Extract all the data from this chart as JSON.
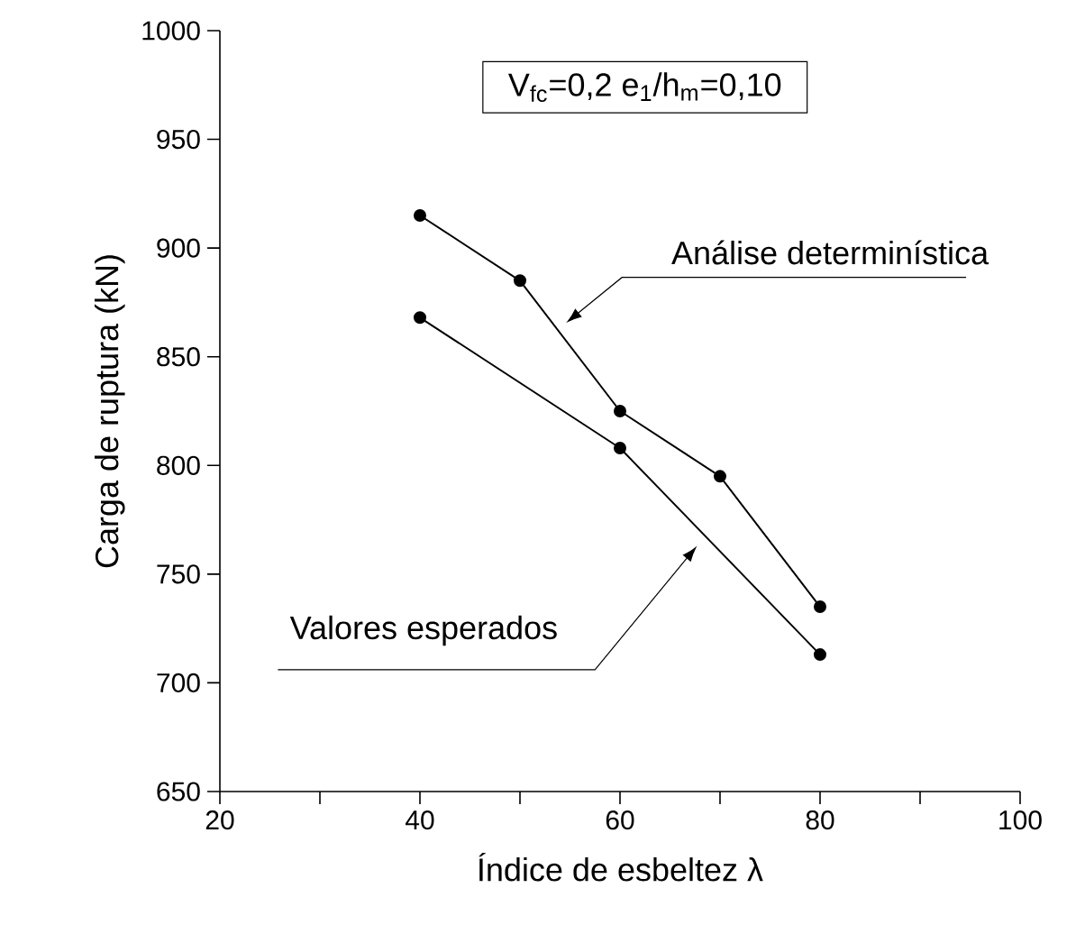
{
  "chart_data": {
    "type": "line",
    "xlabel": "Índice de esbeltez λ",
    "ylabel": "Carga de ruptura (kN)",
    "series": [
      {
        "color": "#000000",
        "x": [
          40,
          50,
          60,
          70,
          80
        ],
        "values": [
          915,
          885,
          825,
          795,
          735
        ]
      },
      {
        "color": "#000000",
        "x": [
          40,
          60,
          80
        ],
        "values": [
          868,
          808,
          713
        ]
      }
    ],
    "annotations": [
      "V$_{fc}$=0,2    e$_{1}$/h$_{m}$=0,10",
      "Análise determinística",
      "Valores esperados"
    ],
    "xlim": [
      20,
      100
    ],
    "xticks": [
      20,
      {
        "value": 30,
        "label": null
      },
      40,
      {
        "value": 50,
        "label": null
      },
      60,
      {
        "value": 70,
        "label": null
      },
      80,
      {
        "value": 90,
        "label": null
      },
      100
    ],
    "ylim": [
      650,
      1000
    ],
    "yticks": [
      650,
      700,
      750,
      800,
      850,
      900,
      950,
      1000
    ],
    "marker": "circle",
    "line_style": "solid"
  }
}
